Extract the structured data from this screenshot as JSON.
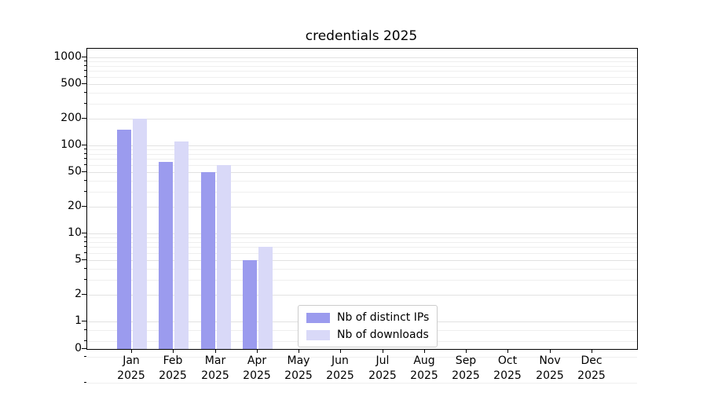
{
  "chart_data": {
    "type": "bar",
    "title": "credentials 2025",
    "categories": [
      "Jan 2025",
      "Feb 2025",
      "Mar 2025",
      "Apr 2025",
      "May 2025",
      "Jun 2025",
      "Jul 2025",
      "Aug 2025",
      "Sep 2025",
      "Oct 2025",
      "Nov 2025",
      "Dec 2025"
    ],
    "series": [
      {
        "name": "Nb of distinct IPs",
        "color": "#9b9bee",
        "values": [
          150,
          65,
          50,
          5,
          0,
          0,
          0,
          0,
          0,
          0,
          0,
          0
        ]
      },
      {
        "name": "Nb of downloads",
        "color": "#d9d9f8",
        "values": [
          200,
          110,
          60,
          7,
          0,
          0,
          0,
          0,
          0,
          0,
          0,
          0
        ]
      }
    ],
    "xlabel": "",
    "ylabel": "",
    "yscale": "symlog",
    "yticks": [
      0,
      1,
      2,
      5,
      10,
      20,
      50,
      100,
      200,
      500,
      1000
    ],
    "yticklabels": [
      "0",
      "1",
      "2",
      "5",
      "10",
      "20",
      "50",
      "100",
      "200",
      "500",
      "1000"
    ],
    "ylim": [
      0,
      1250
    ],
    "grid": "horizontal-minor-and-major",
    "legend_position": "lower center"
  }
}
